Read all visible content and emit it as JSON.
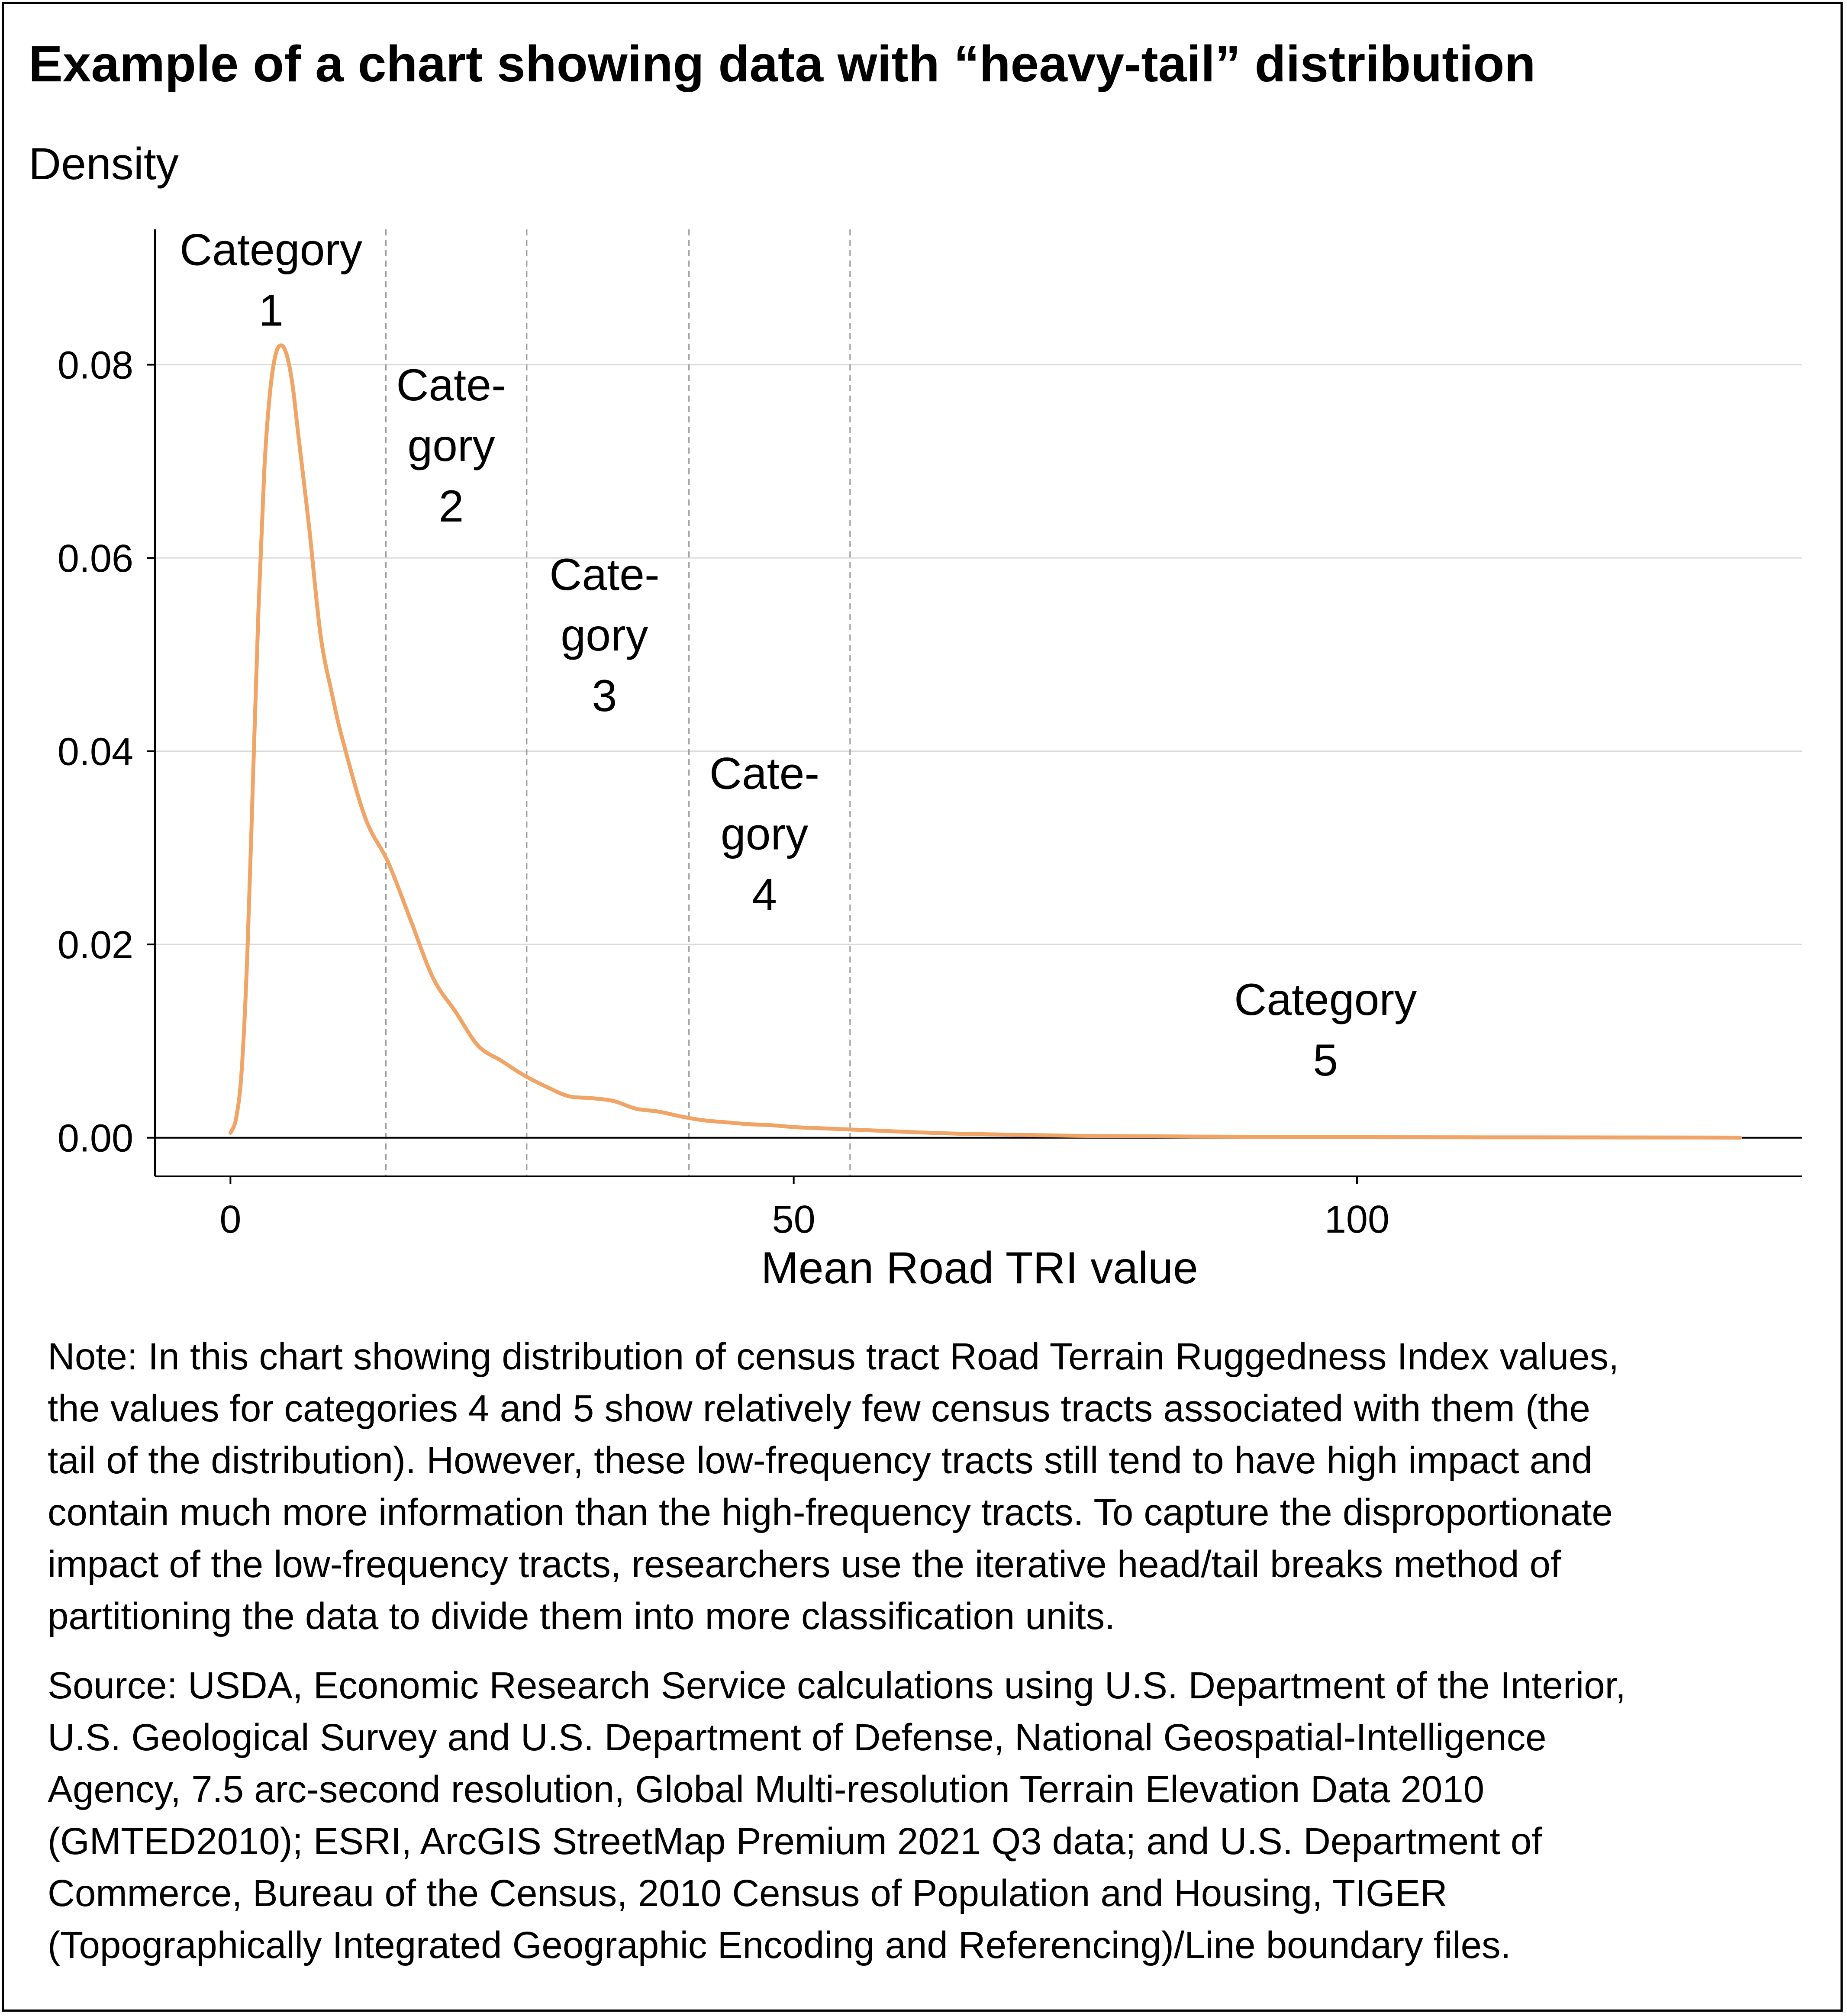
{
  "title": "Example of a chart showing data with “heavy-tail” distribution",
  "ylabel_text": "Density",
  "colors": {
    "curve": "#f0a465",
    "grid": "#d9d9d9",
    "divider": "#999999",
    "axis": "#000000"
  },
  "chart_data": {
    "type": "line",
    "title": "Example of a chart showing data with “heavy-tail” distribution",
    "xlabel": "Mean Road TRI value",
    "ylabel": "Density",
    "xlim": [
      -6.7,
      139.5
    ],
    "ylim": [
      -0.004,
      0.094
    ],
    "x_ticks": [
      0,
      50,
      100
    ],
    "y_ticks": [
      0.0,
      0.02,
      0.04,
      0.06,
      0.08
    ],
    "y_tick_labels": [
      "0.00",
      "0.02",
      "0.04",
      "0.06",
      "0.08"
    ],
    "grid": "horizontal",
    "series": [
      {
        "x": [
          0,
          0.5,
          1,
          1.5,
          2,
          2.5,
          3,
          3.5,
          4,
          4.5,
          5,
          5.5,
          6,
          7,
          8,
          9,
          10,
          12,
          14,
          16,
          18,
          20,
          22,
          24,
          26,
          28,
          30,
          32,
          34,
          36,
          38,
          40,
          42,
          44,
          46,
          48,
          50,
          52,
          54,
          56,
          60,
          65,
          70,
          75,
          80,
          90,
          100,
          110,
          120,
          130,
          134
        ],
        "y": [
          0.0005,
          0.002,
          0.007,
          0.019,
          0.037,
          0.055,
          0.069,
          0.077,
          0.081,
          0.082,
          0.081,
          0.078,
          0.073,
          0.063,
          0.052,
          0.046,
          0.041,
          0.033,
          0.0285,
          0.0225,
          0.0165,
          0.013,
          0.0095,
          0.008,
          0.0065,
          0.0053,
          0.0043,
          0.0041,
          0.0038,
          0.003,
          0.0027,
          0.0022,
          0.0018,
          0.0016,
          0.0014,
          0.0013,
          0.0011,
          0.001,
          0.0009,
          0.0008,
          0.0006,
          0.0004,
          0.0003,
          0.0002,
          0.00015,
          0.0001,
          6e-05,
          4e-05,
          3e-05,
          2e-05,
          1e-05
        ]
      }
    ],
    "category_breaks": [
      13.8,
      26.3,
      40.7,
      55.0
    ],
    "category_labels": [
      {
        "lines": [
          "Category",
          "1"
        ],
        "x": 3.6,
        "y": 0.0903
      },
      {
        "lines": [
          "Cate-",
          "gory",
          "2"
        ],
        "x": 19.6,
        "y": 0.0763
      },
      {
        "lines": [
          "Cate-",
          "gory",
          "3"
        ],
        "x": 33.2,
        "y": 0.0567
      },
      {
        "lines": [
          "Cate-",
          "gory",
          "4"
        ],
        "x": 47.4,
        "y": 0.0361
      },
      {
        "lines": [
          "Category",
          "5"
        ],
        "x": 97.2,
        "y": 0.0127
      }
    ]
  },
  "note_lines": [
    "Note: In this chart showing distribution of census tract Road Terrain Ruggedness Index values,",
    "the values for categories 4 and 5 show relatively few census tracts associated with them (the",
    "tail of the distribution). However, these low-frequency tracts still tend to have high impact and",
    "contain much more information than the high-frequency tracts. To capture the disproportionate",
    "impact of the low-frequency tracts, researchers use the iterative head/tail breaks method of",
    "partitioning the data to divide them into more classification units."
  ],
  "source_lines": [
    "Source: USDA, Economic Research Service calculations using U.S. Department of the Interior,",
    "U.S. Geological Survey and U.S. Department of Defense, National Geospatial-Intelligence",
    "Agency, 7.5 arc-second resolution, Global Multi-resolution Terrain Elevation Data 2010",
    "(GMTED2010); ESRI, ArcGIS StreetMap Premium 2021 Q3 data; and U.S. Department of",
    "Commerce, Bureau of the Census, 2010 Census of Population and Housing, TIGER",
    "(Topographically Integrated Geographic Encoding and Referencing)/Line boundary files."
  ]
}
